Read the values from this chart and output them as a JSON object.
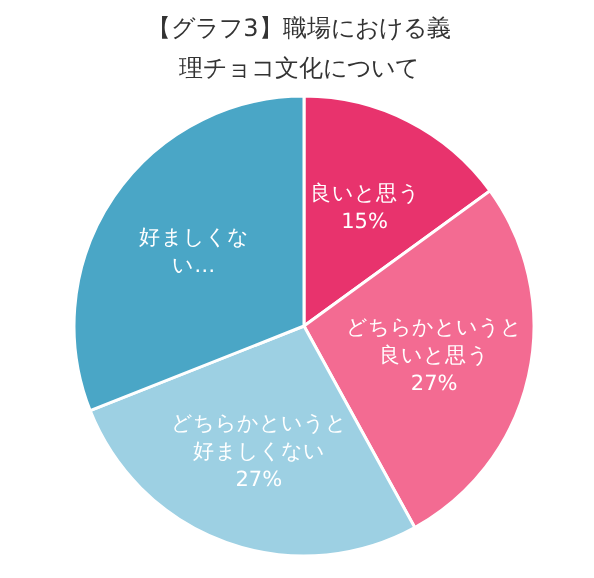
{
  "chart_data": {
    "type": "pie",
    "title": "【グラフ3】職場における義理チョコ文化について",
    "categories": [
      "良いと思う",
      "どちらかというと良いと思う",
      "どちらかというと好ましくない",
      "好ましくない…"
    ],
    "values": [
      15,
      27,
      27,
      31
    ],
    "value_labels": [
      "15%",
      "27%",
      "27%",
      null
    ],
    "colors": [
      "#e8336d",
      "#f36b92",
      "#9dd0e3",
      "#4aa6c6"
    ]
  }
}
